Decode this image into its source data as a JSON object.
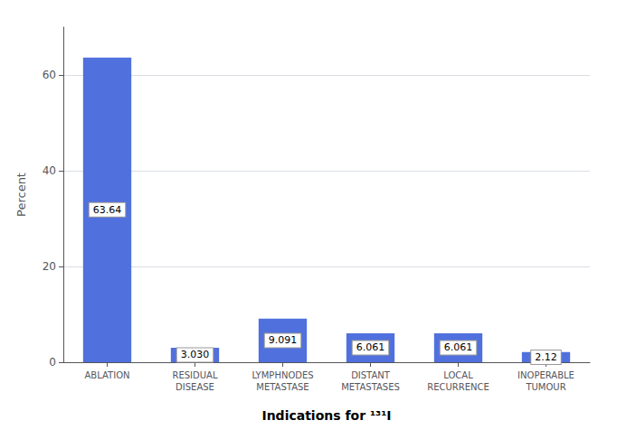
{
  "chart_data": {
    "type": "bar",
    "xlabel": "Indications for ¹³¹I",
    "ylabel": "Percent",
    "categories": [
      "ABLATION",
      "RESIDUAL\nDISEASE",
      "LYMPHNODES\nMETASTASE",
      "DISTANT\nMETASTASES",
      "LOCAL\nRECURRENCE",
      "INOPERABLE\nTUMOUR"
    ],
    "values": [
      63.64,
      3.03,
      9.091,
      6.061,
      6.061,
      2.12
    ],
    "value_labels": [
      "63.64",
      "3.030",
      "9.091",
      "6.061",
      "6.061",
      "2.12"
    ],
    "data_labels": true,
    "ylim": [
      0,
      70
    ],
    "yticks": [
      0,
      20,
      40,
      60
    ],
    "grid": true
  }
}
